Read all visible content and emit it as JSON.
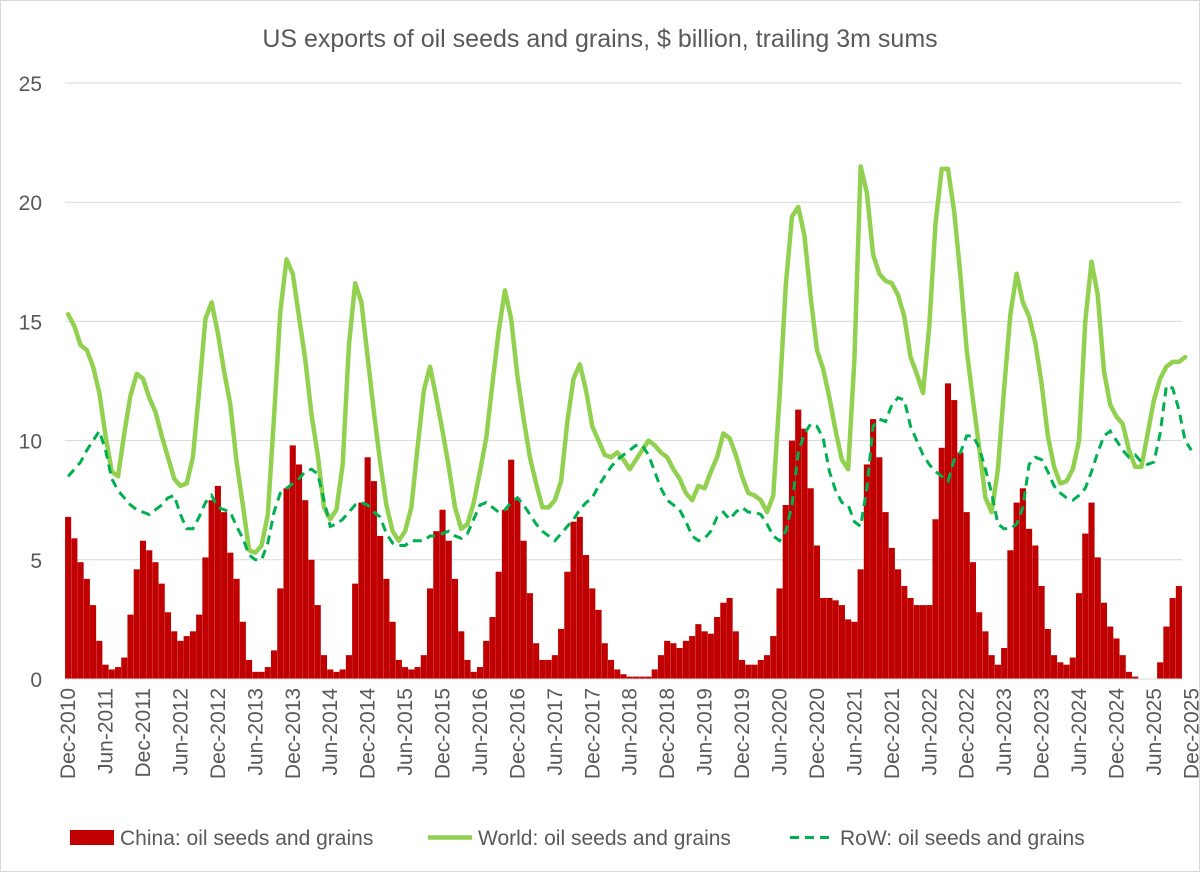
{
  "chart_data": {
    "title": "US exports of oil seeds and grains, $ billion, trailing 3m sums",
    "type": "bar+line",
    "x_start": "2010-12",
    "x_step": "month",
    "x_tick_labels": [
      "Dec-2010",
      "Jun-2011",
      "Dec-2011",
      "Jun-2012",
      "Dec-2012",
      "Jun-2013",
      "Dec-2013",
      "Jun-2014",
      "Dec-2014",
      "Jun-2015",
      "Dec-2015",
      "Jun-2016",
      "Dec-2016",
      "Jun-2017",
      "Dec-2017",
      "Jun-2018",
      "Dec-2018",
      "Jun-2019",
      "Dec-2019",
      "Jun-2020",
      "Dec-2020",
      "Jun-2021",
      "Dec-2021",
      "Jun-2022",
      "Dec-2022",
      "Jun-2023",
      "Dec-2023",
      "Jun-2024",
      "Dec-2024",
      "Jun-2025",
      "Dec-2025"
    ],
    "ylim": [
      0,
      25
    ],
    "y_ticks": [
      0,
      5,
      10,
      15,
      20,
      25
    ],
    "gridlines": true,
    "legend_position": "bottom",
    "series": [
      {
        "name": "China: oil seeds and grains",
        "style": "bar",
        "color": "#c00000",
        "values": [
          6.8,
          5.9,
          4.9,
          4.2,
          3.1,
          1.6,
          0.6,
          0.4,
          0.5,
          0.9,
          2.7,
          4.6,
          5.8,
          5.4,
          4.9,
          4.0,
          2.8,
          2.0,
          1.6,
          1.8,
          2.0,
          2.7,
          5.1,
          7.5,
          8.1,
          7.0,
          5.3,
          4.2,
          2.4,
          0.8,
          0.3,
          0.3,
          0.5,
          1.2,
          3.8,
          8.0,
          9.8,
          9.0,
          7.5,
          5.0,
          3.1,
          1.0,
          0.4,
          0.3,
          0.4,
          1.0,
          4.0,
          7.4,
          9.3,
          8.3,
          6.0,
          4.2,
          2.4,
          0.8,
          0.5,
          0.4,
          0.5,
          1.0,
          3.8,
          6.2,
          7.1,
          5.8,
          4.2,
          2.0,
          0.8,
          0.3,
          0.5,
          1.6,
          2.6,
          4.5,
          7.1,
          9.2,
          7.6,
          5.8,
          3.6,
          1.5,
          0.8,
          0.8,
          1.0,
          2.1,
          4.5,
          6.6,
          6.8,
          5.2,
          3.8,
          2.9,
          1.5,
          0.8,
          0.4,
          0.2,
          0.1,
          0.1,
          0.1,
          0.1,
          0.4,
          1.0,
          1.6,
          1.5,
          1.3,
          1.6,
          1.8,
          2.3,
          2.0,
          1.9,
          2.6,
          3.2,
          3.4,
          2.0,
          0.8,
          0.6,
          0.6,
          0.8,
          1.0,
          1.8,
          3.8,
          7.3,
          10.0,
          11.3,
          10.5,
          8.0,
          5.6,
          3.4,
          3.4,
          3.3,
          3.1,
          2.5,
          2.4,
          4.6,
          9.0,
          10.9,
          9.3,
          7.0,
          5.5,
          4.6,
          3.9,
          3.4,
          3.1,
          3.1,
          3.1,
          6.7,
          9.7,
          12.4,
          11.7,
          9.5,
          7.0,
          4.9,
          2.8,
          2.0,
          1.0,
          0.6,
          1.3,
          5.4,
          7.4,
          8.0,
          6.3,
          5.6,
          3.9,
          2.1,
          1.0,
          0.7,
          0.6,
          0.9,
          3.6,
          6.1,
          7.4,
          5.1,
          3.2,
          2.2,
          1.7,
          1.0,
          0.3,
          0.1,
          0.0,
          0.0,
          0.0,
          0.7,
          2.2,
          3.4,
          3.9
        ]
      },
      {
        "name": "World: oil seeds and grains",
        "style": "solid line",
        "color": "#92d050",
        "values": [
          15.3,
          14.8,
          14.0,
          13.8,
          13.1,
          12.0,
          10.2,
          8.7,
          8.5,
          10.3,
          11.9,
          12.8,
          12.6,
          11.8,
          11.2,
          10.2,
          9.3,
          8.4,
          8.1,
          8.2,
          9.3,
          12.1,
          15.1,
          15.8,
          14.5,
          12.9,
          11.5,
          9.1,
          7.3,
          5.4,
          5.3,
          5.6,
          6.9,
          11.0,
          15.4,
          17.6,
          17.0,
          15.2,
          13.4,
          11.1,
          9.4,
          7.2,
          6.7,
          7.1,
          9.0,
          14.0,
          16.6,
          15.8,
          13.5,
          11.2,
          9.1,
          7.3,
          6.2,
          5.8,
          6.2,
          7.2,
          9.7,
          12.1,
          13.1,
          11.8,
          10.4,
          8.9,
          7.2,
          6.3,
          6.5,
          7.4,
          8.7,
          10.1,
          12.4,
          14.6,
          16.3,
          15.1,
          12.7,
          10.9,
          9.3,
          8.2,
          7.2,
          7.2,
          7.5,
          8.3,
          10.8,
          12.6,
          13.2,
          12.1,
          10.6,
          10.0,
          9.4,
          9.3,
          9.5,
          9.2,
          8.8,
          9.2,
          9.6,
          10.0,
          9.8,
          9.5,
          9.3,
          8.8,
          8.4,
          7.8,
          7.5,
          8.1,
          8.0,
          8.7,
          9.3,
          10.3,
          10.1,
          9.4,
          8.5,
          7.8,
          7.7,
          7.5,
          7.0,
          7.7,
          11.8,
          16.5,
          19.4,
          19.8,
          18.6,
          16.0,
          13.8,
          13.0,
          11.8,
          10.4,
          9.2,
          8.8,
          13.4,
          21.5,
          20.4,
          17.8,
          17.0,
          16.7,
          16.6,
          16.1,
          15.2,
          13.5,
          12.8,
          12.0,
          14.8,
          19.1,
          21.4,
          21.4,
          19.6,
          16.9,
          13.8,
          11.7,
          9.7,
          7.6,
          7.0,
          8.8,
          12.2,
          15.3,
          17.0,
          15.8,
          15.2,
          14.1,
          12.4,
          10.2,
          8.9,
          8.2,
          8.3,
          8.8,
          10.0,
          15.0,
          17.5,
          16.1,
          12.9,
          11.5,
          11.0,
          10.7,
          9.6,
          8.9,
          8.9,
          10.3,
          11.7,
          12.6,
          13.1,
          13.3,
          13.3,
          13.5
        ]
      },
      {
        "name": "RoW: oil seeds and grains",
        "style": "dashed line",
        "color": "#00b050",
        "values": [
          8.5,
          8.8,
          9.1,
          9.6,
          10.0,
          10.4,
          9.6,
          8.4,
          7.9,
          7.6,
          7.3,
          7.1,
          7.0,
          6.9,
          7.1,
          7.3,
          7.6,
          7.7,
          6.9,
          6.3,
          6.3,
          6.8,
          7.4,
          7.7,
          7.2,
          7.1,
          7.0,
          6.4,
          5.9,
          5.2,
          5.0,
          5.0,
          5.7,
          7.0,
          7.8,
          8.0,
          8.2,
          8.4,
          8.7,
          8.8,
          8.6,
          7.5,
          6.4,
          6.5,
          6.7,
          7.0,
          7.3,
          7.4,
          7.3,
          7.0,
          6.8,
          6.1,
          5.7,
          5.6,
          5.6,
          5.8,
          5.8,
          5.8,
          6.0,
          6.0,
          6.1,
          6.2,
          6.0,
          5.9,
          6.1,
          6.7,
          7.3,
          7.4,
          7.2,
          7.0,
          7.1,
          7.4,
          7.6,
          7.3,
          6.9,
          6.5,
          6.2,
          6.0,
          5.8,
          6.1,
          6.4,
          6.7,
          7.1,
          7.4,
          7.6,
          8.1,
          8.5,
          8.9,
          9.2,
          9.4,
          9.6,
          9.8,
          9.8,
          9.4,
          8.7,
          8.0,
          7.5,
          7.3,
          7.1,
          6.6,
          6.0,
          5.8,
          5.9,
          6.2,
          6.8,
          7.0,
          6.7,
          7.0,
          7.2,
          7.0,
          7.0,
          6.9,
          6.5,
          6.0,
          5.8,
          6.2,
          7.3,
          9.5,
          10.3,
          10.7,
          10.6,
          10.1,
          8.7,
          7.9,
          7.4,
          7.3,
          6.6,
          6.4,
          8.0,
          10.6,
          10.9,
          10.8,
          11.5,
          11.8,
          11.7,
          10.6,
          10.0,
          9.4,
          9.0,
          8.7,
          8.5,
          8.3,
          9.2,
          9.5,
          10.2,
          10.2,
          9.7,
          8.8,
          7.8,
          6.5,
          6.3,
          6.3,
          6.5,
          7.2,
          9.0,
          9.3,
          9.2,
          8.7,
          8.1,
          7.8,
          7.6,
          7.5,
          7.7,
          8.0,
          8.7,
          9.5,
          10.2,
          10.4,
          10.0,
          9.6,
          9.3,
          9.4,
          9.1,
          9.0,
          9.1,
          10.3,
          12.3,
          12.2,
          11.3,
          10.0,
          9.6
        ]
      }
    ]
  }
}
